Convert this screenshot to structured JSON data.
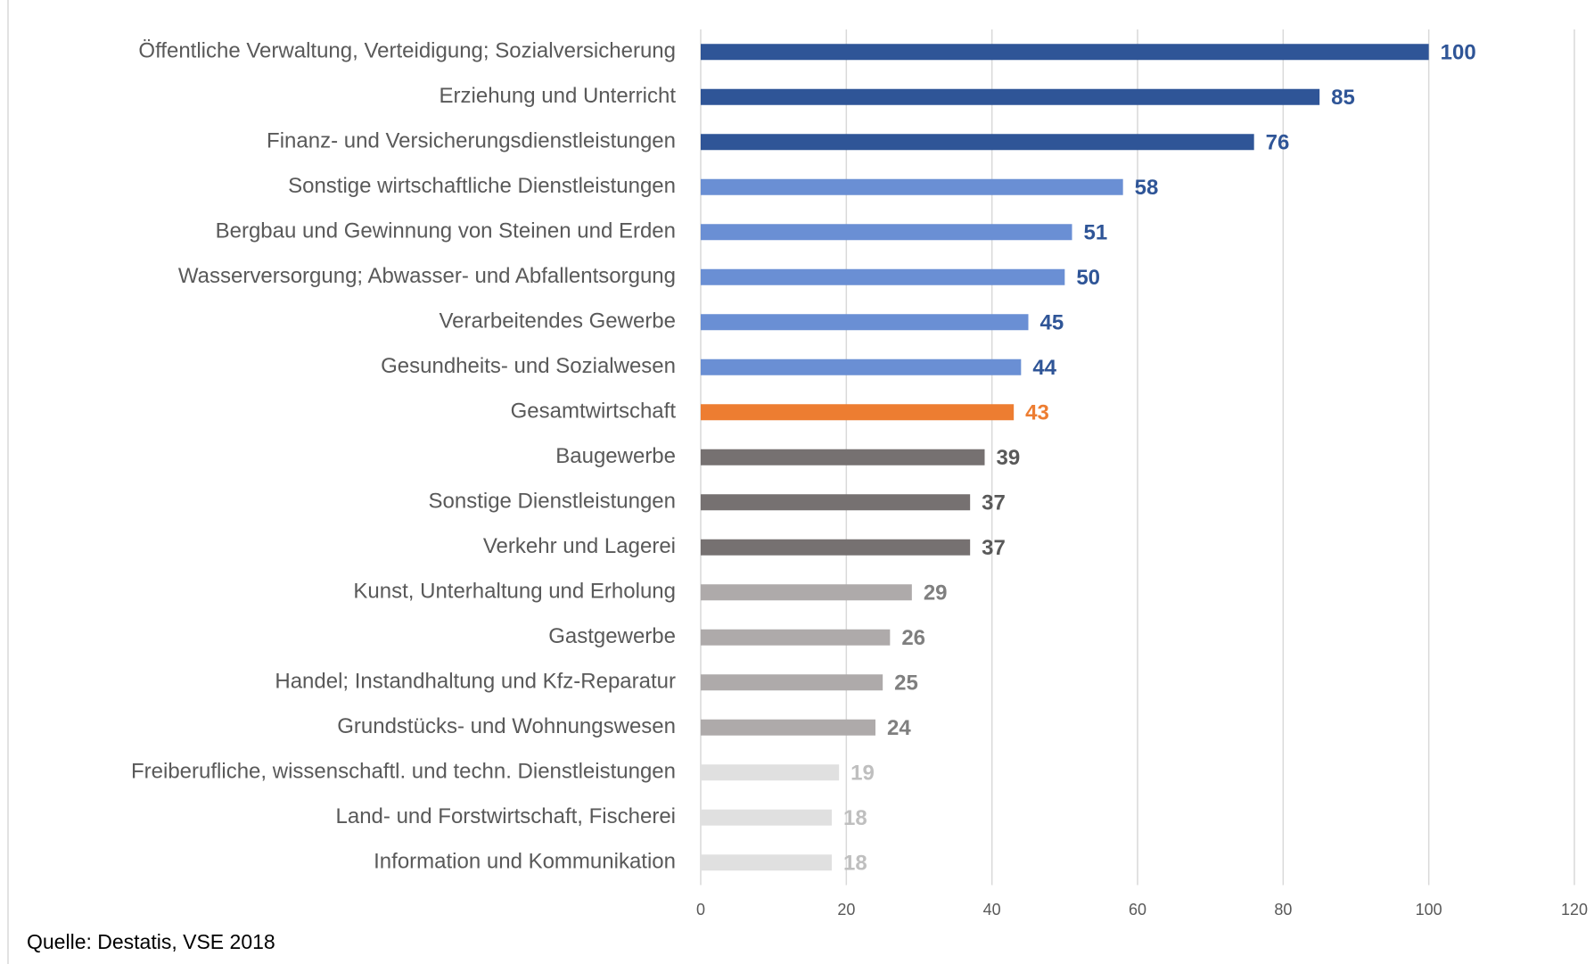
{
  "chart_data": {
    "type": "bar",
    "categories": [
      "Öffentliche Verwaltung, Verteidigung; Sozialversicherung",
      "Erziehung und Unterricht",
      "Finanz- und Versicherungsdienstleistungen",
      "Sonstige wirtschaftliche Dienstleistungen",
      "Bergbau und Gewinnung von Steinen und Erden",
      "Wasserversorgung; Abwasser- und Abfallentsorgung",
      "Verarbeitendes Gewerbe",
      "Gesundheits- und Sozialwesen",
      "Gesamtwirtschaft",
      "Baugewerbe",
      "Sonstige Dienstleistungen",
      "Verkehr und Lagerei",
      "Kunst, Unterhaltung und Erholung",
      "Gastgewerbe",
      "Handel; Instandhaltung und Kfz-Reparatur",
      "Grundstücks- und Wohnungswesen",
      "Freiberufliche, wissenschaftl. und techn. Dienstleistungen",
      "Land- und Forstwirtschaft, Fischerei",
      "Information und Kommunikation"
    ],
    "values": [
      100,
      85,
      76,
      58,
      51,
      50,
      45,
      44,
      43,
      39,
      37,
      37,
      29,
      26,
      25,
      24,
      19,
      18,
      18
    ],
    "colors": [
      "#2f5597",
      "#2f5597",
      "#2f5597",
      "#6a8fd4",
      "#6a8fd4",
      "#6a8fd4",
      "#6a8fd4",
      "#6a8fd4",
      "#ed7d31",
      "#767171",
      "#767171",
      "#767171",
      "#aeaaaa",
      "#aeaaaa",
      "#aeaaaa",
      "#aeaaaa",
      "#e0e0e0",
      "#e0e0e0",
      "#e0e0e0"
    ],
    "label_colors": [
      "#2f5597",
      "#2f5597",
      "#2f5597",
      "#2f5597",
      "#2f5597",
      "#2f5597",
      "#2f5597",
      "#2f5597",
      "#ed7d31",
      "#595959",
      "#595959",
      "#595959",
      "#7f7f7f",
      "#7f7f7f",
      "#7f7f7f",
      "#7f7f7f",
      "#bfbfbf",
      "#bfbfbf",
      "#bfbfbf"
    ],
    "xlim": [
      0,
      120
    ],
    "xticks": [
      0,
      20,
      40,
      60,
      80,
      100,
      120
    ],
    "grid": true,
    "source": "Quelle: Destatis, VSE 2018"
  }
}
